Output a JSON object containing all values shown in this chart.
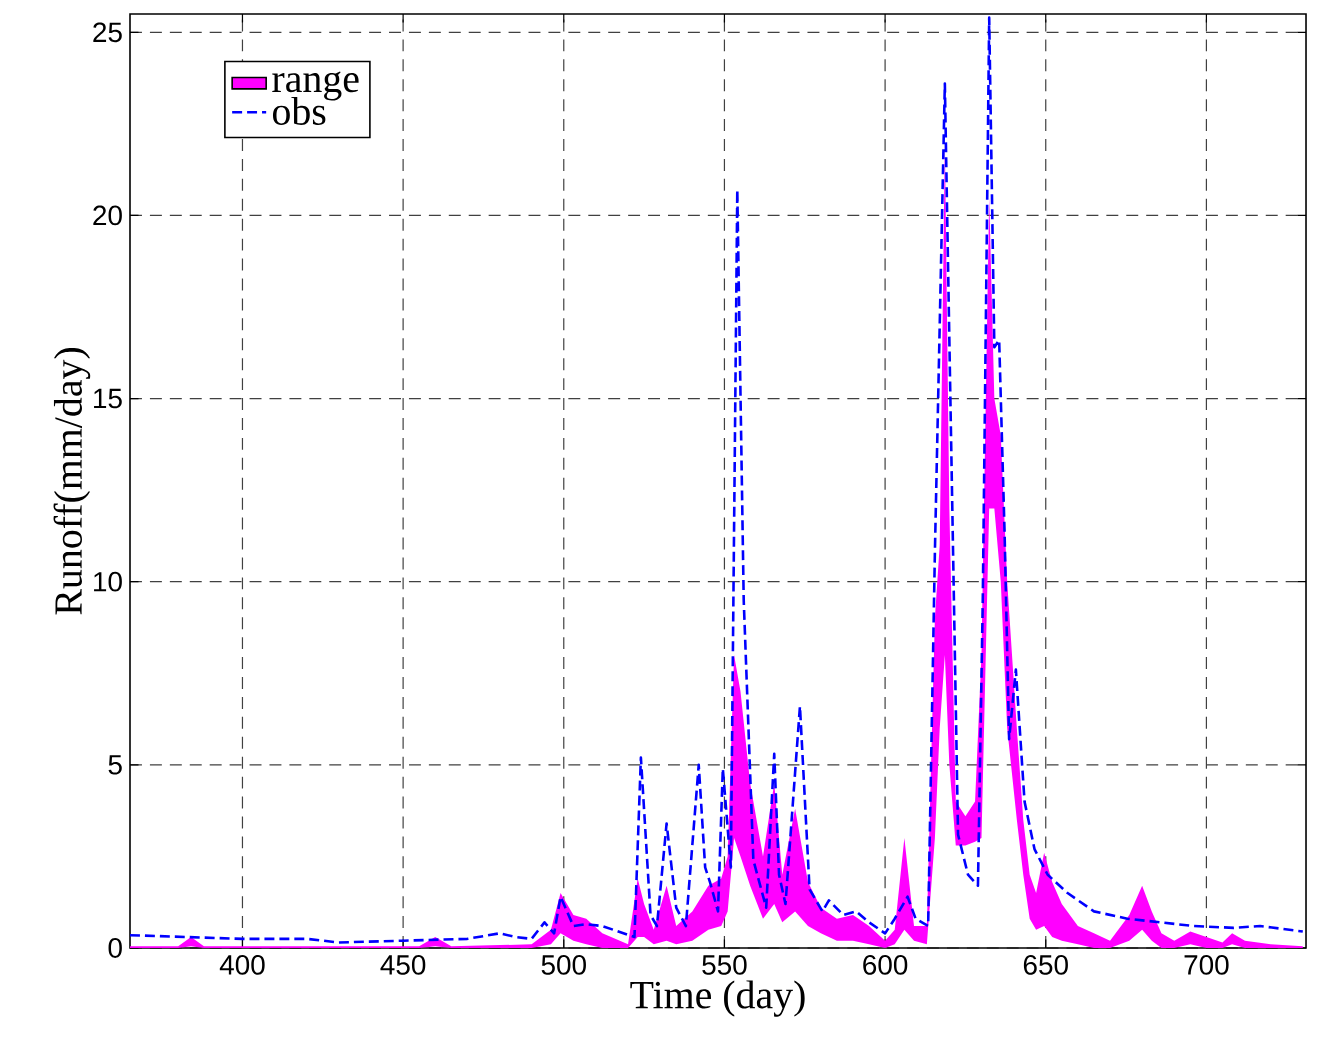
{
  "chart_data": {
    "type": "line",
    "xlabel": "Time (day)",
    "ylabel": "Runoff(mm/day)",
    "xlim": [
      365,
      731
    ],
    "ylim": [
      0,
      25.5
    ],
    "xticks": [
      400,
      450,
      500,
      550,
      600,
      650,
      700
    ],
    "yticks": [
      0,
      5,
      10,
      15,
      20,
      25
    ],
    "grid": true,
    "legend": "top left",
    "marker": "none",
    "series": [
      {
        "name": "range",
        "type": "area",
        "color": "#ff00ff",
        "x": [
          365,
          380,
          384,
          388,
          455,
          460,
          465,
          490,
          496,
          499,
          503,
          507,
          512,
          520,
          523,
          525,
          528,
          532,
          535,
          540,
          545,
          549,
          551,
          553,
          555,
          558,
          562,
          565.5,
          568,
          572,
          576,
          580,
          585,
          590,
          595,
          600,
          603,
          606,
          609,
          613,
          615.5,
          617,
          618.6,
          620,
          622,
          625,
          628,
          630,
          632.4,
          634,
          636,
          638,
          641,
          643,
          645,
          647,
          649.5,
          652,
          655,
          660,
          665,
          670,
          676,
          680,
          683,
          686,
          690,
          695,
          700,
          705,
          708,
          712,
          720,
          730
        ],
        "lower": [
          0,
          0,
          0.05,
          0,
          0,
          0.05,
          0,
          0,
          0.1,
          0.4,
          0.2,
          0.1,
          0,
          0,
          0.3,
          0.3,
          0.1,
          0.2,
          0.1,
          0.2,
          0.5,
          0.6,
          1.0,
          3.0,
          2.5,
          1.7,
          0.8,
          1.2,
          0.7,
          1.0,
          0.6,
          0.4,
          0.2,
          0.2,
          0.1,
          0,
          0.1,
          0.5,
          0.2,
          0.1,
          3.0,
          6.0,
          8.0,
          5.0,
          2.8,
          2.8,
          2.9,
          3.0,
          12.0,
          12.0,
          10.0,
          6.0,
          3.5,
          2.0,
          0.8,
          0.5,
          0.6,
          0.3,
          0.2,
          0.1,
          0,
          0,
          0.2,
          0.5,
          0.2,
          0,
          0,
          0.1,
          0,
          0,
          0.1,
          0,
          0,
          0
        ],
        "values": [
          null,
          null,
          null,
          null,
          null,
          null,
          null,
          null,
          null,
          null,
          null,
          null,
          null,
          null,
          null,
          null,
          null,
          null,
          null,
          null,
          null,
          null,
          null,
          null,
          null,
          null,
          null,
          null,
          null,
          null,
          null,
          null,
          null,
          null,
          null,
          null,
          null,
          null,
          null,
          null,
          null,
          null,
          null,
          null,
          null,
          null,
          null,
          null,
          null,
          null,
          null,
          null,
          null,
          null,
          null,
          null,
          null,
          null,
          null,
          null,
          null,
          null,
          null,
          null,
          null,
          null,
          null,
          null,
          null,
          null,
          null,
          null,
          null,
          null
        ],
        "upper": [
          0.05,
          0.05,
          0.3,
          0.05,
          0.05,
          0.3,
          0.05,
          0.1,
          0.5,
          1.5,
          0.9,
          0.8,
          0.4,
          0.1,
          1.9,
          1.2,
          0.5,
          1.7,
          0.6,
          1.0,
          1.7,
          1.9,
          2.5,
          8.0,
          7.0,
          4.5,
          2.5,
          4.5,
          2.0,
          3.8,
          1.8,
          1.1,
          0.8,
          0.9,
          0.6,
          0.2,
          0.5,
          3.0,
          0.6,
          0.6,
          9.0,
          11.0,
          22.0,
          12.0,
          4.0,
          3.6,
          4.0,
          8.0,
          20.5,
          15.0,
          14.0,
          10.0,
          6.0,
          3.5,
          2.0,
          1.5,
          2.6,
          1.8,
          1.2,
          0.6,
          0.4,
          0.2,
          0.9,
          1.7,
          1.0,
          0.4,
          0.2,
          0.45,
          0.3,
          0.15,
          0.4,
          0.2,
          0.1,
          0.05
        ]
      },
      {
        "name": "obs",
        "type": "line",
        "color": "#0000ff",
        "line_style": "dashed",
        "x": [
          365,
          400,
          420,
          430,
          450,
          470,
          480,
          485,
          490,
          494,
          497,
          499,
          503,
          507,
          512,
          522,
          524,
          527,
          529,
          532,
          535,
          538,
          542,
          544,
          545.5,
          548,
          549.5,
          552,
          554,
          556,
          559,
          563,
          565.5,
          567,
          569,
          573.5,
          576.5,
          580.5,
          582.5,
          587,
          591,
          595,
          600,
          603,
          607,
          609.5,
          613.4,
          615.5,
          618.6,
          620.7,
          622.7,
          625.8,
          628.9,
          630.4,
          632.4,
          634,
          635.5,
          637.2,
          638.6,
          640.7,
          643.4,
          646.5,
          650.6,
          656.8,
          665,
          675.4,
          685.7,
          696,
          708.5,
          716.7,
          730
        ],
        "values": [
          0.35,
          0.25,
          0.25,
          0.15,
          0.2,
          0.25,
          0.4,
          0.3,
          0.25,
          0.7,
          0.4,
          1.4,
          0.6,
          0.65,
          0.6,
          0.3,
          5.2,
          0.9,
          0.6,
          3.4,
          1.1,
          0.6,
          5.0,
          2.2,
          1.8,
          1.0,
          4.9,
          2.2,
          20.7,
          9.5,
          2.4,
          1.1,
          5.3,
          2.0,
          1.2,
          6.6,
          1.6,
          1.0,
          1.3,
          0.9,
          1.0,
          0.7,
          0.4,
          0.8,
          1.4,
          0.8,
          0.6,
          10.8,
          23.6,
          13.1,
          3.1,
          2.0,
          1.7,
          9.5,
          25.4,
          16.4,
          16.6,
          11.3,
          5.7,
          7.6,
          4.0,
          2.7,
          2.0,
          1.5,
          1.0,
          0.8,
          0.7,
          0.6,
          0.55,
          0.6,
          0.45
        ]
      }
    ]
  }
}
